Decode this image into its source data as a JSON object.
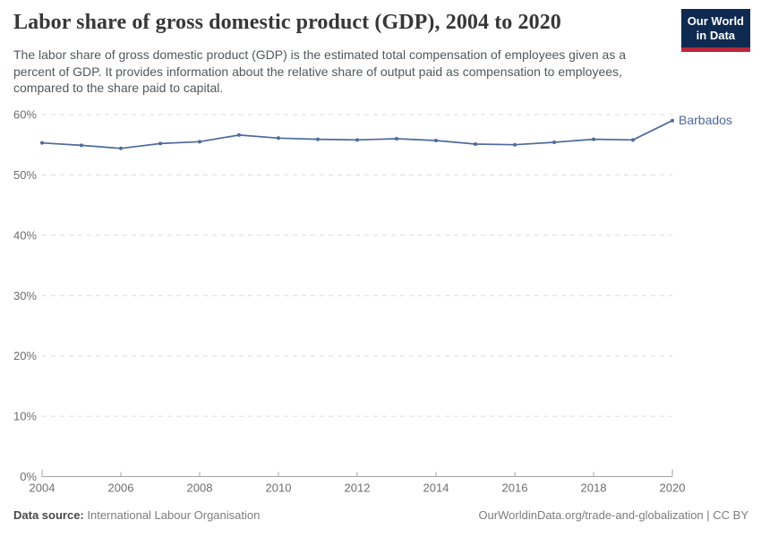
{
  "chart_data": {
    "type": "line",
    "title": "Labor share of gross domestic product (GDP), 2004 to 2020",
    "subtitle_lines": [
      "The labor share of gross domestic product (GDP) is the estimated total compensation of employees given as a",
      "percent of GDP. It provides information about the relative share of output paid as compensation to employees,",
      "compared to the share paid to capital."
    ],
    "x": [
      2004,
      2005,
      2006,
      2007,
      2008,
      2009,
      2010,
      2011,
      2012,
      2013,
      2014,
      2015,
      2016,
      2017,
      2018,
      2019,
      2020
    ],
    "series": [
      {
        "name": "Barbados",
        "color": "#4c6a9c",
        "values": [
          55.3,
          54.9,
          54.4,
          55.2,
          55.5,
          56.6,
          56.1,
          55.9,
          55.8,
          56.0,
          55.7,
          55.1,
          55.0,
          55.4,
          55.9,
          55.8,
          59.0
        ]
      }
    ],
    "xlabel": "",
    "ylabel": "",
    "ylim": [
      0,
      60
    ],
    "yticks": [
      0,
      10,
      20,
      30,
      40,
      50,
      60
    ],
    "ytick_suffix": "%",
    "xticks": [
      2004,
      2006,
      2008,
      2010,
      2012,
      2014,
      2016,
      2018,
      2020
    ],
    "grid": "horizontal-dashed",
    "legend": "end-of-line-label",
    "grid_color": "#dcdcdc",
    "axis_color": "#a3a3a3",
    "tick_label_color": "#6e6e6e"
  },
  "logo": {
    "line1": "Our World",
    "line2": "in Data",
    "bg_color": "#0f2a50",
    "stripe_color": "#b9273a"
  },
  "footer": {
    "datasource_label": "Data source:",
    "datasource_value": "International Labour Organisation",
    "credit": "OurWorldinData.org/trade-and-globalization | CC BY"
  }
}
